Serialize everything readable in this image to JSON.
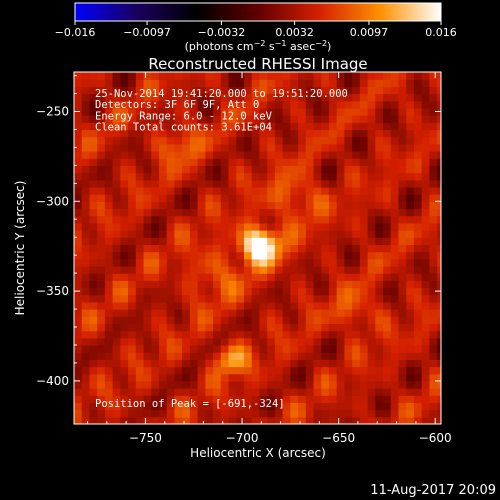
{
  "chart_data": {
    "type": "heatmap",
    "title": "Reconstructed RHESSI Image",
    "xlabel": "Heliocentric X (arcsec)",
    "ylabel": "Heliocentric Y (arcsec)",
    "xlim": [
      -787,
      -597
    ],
    "ylim": [
      -424,
      -228
    ],
    "x_ticks": [
      -750,
      -700,
      -650,
      -600
    ],
    "y_ticks": [
      -250,
      -300,
      -350,
      -400
    ],
    "x_tick_labels": [
      "−750",
      "−700",
      "−650",
      "−600"
    ],
    "y_tick_labels": [
      "−250",
      "−300",
      "−350",
      "−400"
    ],
    "grid": false,
    "colorbar": {
      "range": [
        -0.016,
        0.016
      ],
      "ticks": [
        -0.016,
        -0.0097,
        -0.0032,
        0.0032,
        0.0097,
        0.016
      ],
      "tick_labels": [
        "−0.016",
        "−0.0097",
        "−0.0032",
        "0.0032",
        "0.0097",
        "0.016"
      ],
      "unit_label_parts": [
        "(photons cm",
        "−2",
        " s",
        "−1",
        " asec",
        "−2",
        ")"
      ],
      "colors": [
        "#0000ff",
        "#1a0060",
        "#000000",
        "#600000",
        "#d42000",
        "#ff9000",
        "#ffffff"
      ]
    },
    "annotations": [
      "25-Nov-2014 19:41:20.000 to 19:51:20.000",
      "Detectors: 3F 6F 9F, Att 0",
      "Energy Range: 6.0 - 12.0 keV",
      "Clean    Total counts: 3.61E+04"
    ],
    "peak_label": "Position of Peak = [-691,-324]",
    "peak": {
      "x": -691,
      "y": -324,
      "value": 0.016
    },
    "sources": [
      {
        "x": -691,
        "y": -324,
        "sigma": 7,
        "value": 0.0155
      },
      {
        "x": -706,
        "y": -388,
        "sigma": 6,
        "value": 0.0075
      },
      {
        "x": -733,
        "y": -268,
        "sigma": 7,
        "value": 0.0045
      },
      {
        "x": -640,
        "y": -362,
        "sigma": 8,
        "value": 0.004
      },
      {
        "x": -672,
        "y": -298,
        "sigma": 9,
        "value": 0.005
      },
      {
        "x": -715,
        "y": -340,
        "sigma": 10,
        "value": 0.004
      }
    ],
    "background": {
      "value": 0.0042,
      "ripple": 0.0022
    },
    "pixel_size_arcsec": 4
  },
  "footer": {
    "timestamp": "11-Aug-2017 20:09"
  }
}
